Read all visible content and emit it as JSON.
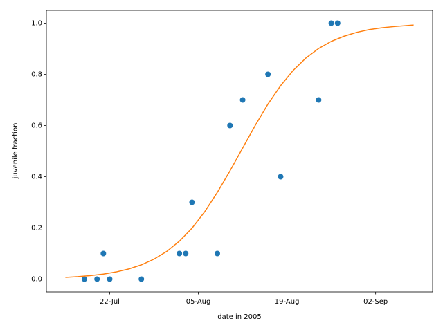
{
  "chart_data": {
    "type": "scatter",
    "xlabel": "date in 2005",
    "ylabel": "juvenile fraction",
    "xlim": [
      "12-Jul",
      "11-Sep"
    ],
    "xticks": [
      "22-Jul",
      "05-Aug",
      "19-Aug",
      "02-Sep"
    ],
    "ylim": [
      -0.05,
      1.05
    ],
    "yticks": [
      {
        "value": 0,
        "label": "0.0"
      },
      {
        "value": 0.2,
        "label": "0.2"
      },
      {
        "value": 0.4,
        "label": "0.4"
      },
      {
        "value": 0.6,
        "label": "0.6"
      },
      {
        "value": 0.8,
        "label": "0.8"
      },
      {
        "value": 1,
        "label": "1.0"
      }
    ],
    "grid": false,
    "series": [
      {
        "type": "scatter",
        "color": "#1f77b4",
        "x": [
          "18-Jul",
          "20-Jul",
          "21-Jul",
          "22-Jul",
          "27-Jul",
          "02-Aug",
          "03-Aug",
          "04-Aug",
          "08-Aug",
          "10-Aug",
          "12-Aug",
          "16-Aug",
          "18-Aug",
          "24-Aug",
          "26-Aug",
          "27-Aug"
        ],
        "values": [
          0,
          0,
          0.1,
          0,
          0,
          0.1,
          0.1,
          0.3,
          0.1,
          0.6,
          0.7,
          0.8,
          0.4,
          0.7,
          1.0,
          1.0
        ]
      },
      {
        "type": "line",
        "color": "#ff7f0e",
        "x": [
          "15-Jul",
          "17-Jul",
          "19-Jul",
          "21-Jul",
          "23-Jul",
          "25-Jul",
          "27-Jul",
          "29-Jul",
          "31-Jul",
          "02-Aug",
          "04-Aug",
          "06-Aug",
          "08-Aug",
          "10-Aug",
          "12-Aug",
          "14-Aug",
          "16-Aug",
          "18-Aug",
          "20-Aug",
          "22-Aug",
          "24-Aug",
          "26-Aug",
          "28-Aug",
          "30-Aug",
          "01-Sep",
          "03-Sep",
          "05-Sep",
          "07-Sep",
          "08-Sep"
        ],
        "values": [
          0.0068,
          0.0097,
          0.0138,
          0.0196,
          0.0279,
          0.0395,
          0.0557,
          0.078,
          0.108,
          0.148,
          0.199,
          0.263,
          0.339,
          0.423,
          0.512,
          0.601,
          0.684,
          0.756,
          0.816,
          0.864,
          0.901,
          0.929,
          0.949,
          0.964,
          0.975,
          0.982,
          0.987,
          0.991,
          0.993
        ]
      }
    ]
  }
}
